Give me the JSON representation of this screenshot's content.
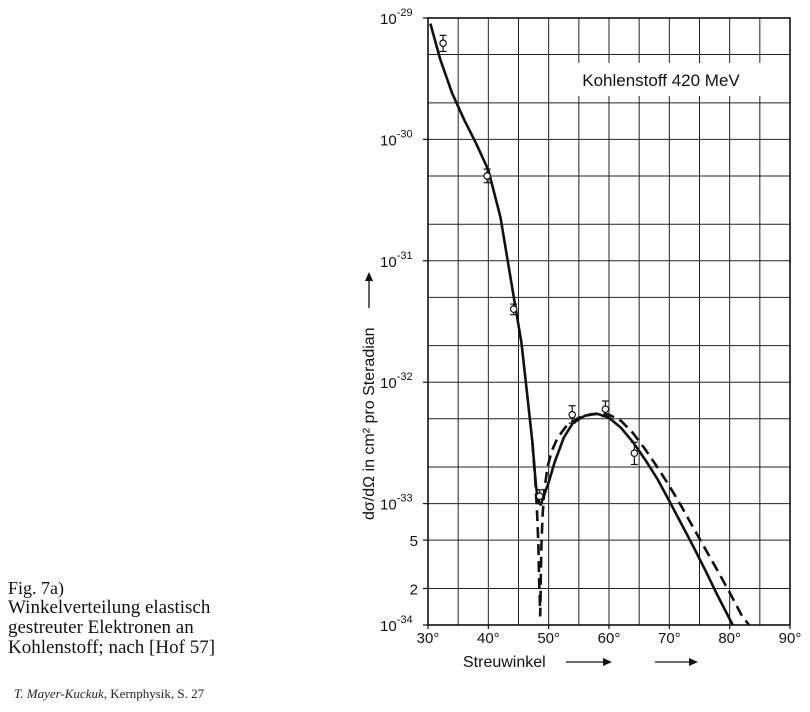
{
  "caption": {
    "figure_number": "Fig. 7a)",
    "lines": [
      "Winkelverteilung elastisch",
      "gestreuter Elektronen an",
      "Kohlenstoff; nach [Hof 57]"
    ]
  },
  "source": {
    "author": "T. Mayer-Kuckuk,",
    "rest": " Kernphysik, S. 27"
  },
  "chart_data": {
    "type": "line",
    "title": "Kohlenstoff 420 MeV",
    "xlabel": "Streuwinkel",
    "ylabel": "dσ/dΩ in cm² pro Steradian",
    "xlim": [
      30,
      90
    ],
    "ylim": [
      1e-34,
      1e-29
    ],
    "yscale": "log",
    "grid": true,
    "x_ticks": [
      {
        "value": 30,
        "label": "30°"
      },
      {
        "value": 40,
        "label": "40°"
      },
      {
        "value": 50,
        "label": "50°"
      },
      {
        "value": 60,
        "label": "60°"
      },
      {
        "value": 70,
        "label": "70°"
      },
      {
        "value": 80,
        "label": "80°"
      },
      {
        "value": 90,
        "label": "90°"
      }
    ],
    "y_ticks": [
      {
        "value": 1e-29,
        "base": "10",
        "exp": "-29"
      },
      {
        "value": 1e-30,
        "base": "10",
        "exp": "-30"
      },
      {
        "value": 1e-31,
        "base": "10",
        "exp": "-31"
      },
      {
        "value": 1e-32,
        "base": "10",
        "exp": "-32"
      },
      {
        "value": 1e-33,
        "base": "10",
        "exp": "-33"
      },
      {
        "value": 5e-34,
        "base": "5",
        "exp": ""
      },
      {
        "value": 2e-34,
        "base": "2",
        "exp": ""
      },
      {
        "value": 1e-34,
        "base": "10",
        "exp": "-34"
      }
    ],
    "series": [
      {
        "style": "solid",
        "x": [
          30.4,
          32,
          34,
          36,
          38,
          40,
          42,
          44,
          45.5,
          46.5,
          47.3,
          47.9,
          48.3,
          48.7,
          49.2,
          50,
          51,
          52.5,
          54,
          56,
          58,
          60,
          62,
          64,
          66,
          68,
          70,
          72,
          74,
          76,
          78,
          80.5
        ],
        "y": [
          9e-30,
          4.6e-30,
          2.4e-30,
          1.45e-30,
          9.2e-31,
          5.6e-31,
          2.3e-31,
          5.8e-32,
          2.1e-32,
          7.5e-33,
          3.2e-33,
          1.4e-33,
          1.02e-33,
          9.8e-34,
          1.15e-33,
          1.5e-33,
          2.2e-33,
          3.5e-33,
          4.6e-33,
          5.3e-33,
          5.5e-33,
          5.1e-33,
          4.2e-33,
          3.2e-33,
          2.3e-33,
          1.6e-33,
          1.05e-33,
          6.8e-34,
          4.4e-34,
          2.8e-34,
          1.75e-34,
          1e-34
        ]
      },
      {
        "style": "dashed",
        "x": [
          47.3,
          47.8,
          48.1,
          48.3,
          48.4,
          48.55,
          48.6,
          48.65,
          48.7,
          48.8,
          49.0,
          49.3,
          49.8,
          50.5,
          51.5,
          53,
          55,
          57,
          59,
          60,
          62,
          64,
          66,
          68,
          70,
          72,
          74,
          76,
          78,
          80,
          82,
          83.2
        ],
        "y": [
          3.2e-33,
          1.5e-33,
          8e-34,
          4.5e-34,
          2.5e-34,
          1.5e-34,
          1.2e-34,
          1.5e-34,
          2.5e-34,
          4.5e-34,
          8e-34,
          1.3e-33,
          2e-33,
          2.7e-33,
          3.5e-33,
          4.4e-33,
          5.1e-33,
          5.45e-33,
          5.5e-33,
          5.4e-33,
          4.8e-33,
          3.8e-33,
          2.8e-33,
          2e-33,
          1.4e-33,
          9.5e-34,
          6.3e-34,
          4.2e-34,
          2.8e-34,
          1.85e-34,
          1.2e-34,
          1e-34
        ]
      }
    ],
    "measurements": [
      {
        "x": 32.5,
        "y": 6.2e-30,
        "err_lo": 5.3e-30,
        "err_hi": 7.2e-30
      },
      {
        "x": 39.8,
        "y": 5e-31,
        "err_lo": 4.4e-31,
        "err_hi": 5.7e-31
      },
      {
        "x": 44.2,
        "y": 4e-32,
        "err_lo": 3.6e-32,
        "err_hi": 4.4e-32
      },
      {
        "x": 48.5,
        "y": 1.15e-33,
        "err_lo": 1e-33,
        "err_hi": 1.3e-33
      },
      {
        "x": 53.9,
        "y": 5.4e-33,
        "err_lo": 4.6e-33,
        "err_hi": 6.4e-33
      },
      {
        "x": 59.4,
        "y": 6e-33,
        "err_lo": 5.2e-33,
        "err_hi": 7e-33
      },
      {
        "x": 64.2,
        "y": 2.6e-33,
        "err_lo": 2.1e-33,
        "err_hi": 3.2e-33
      }
    ]
  }
}
